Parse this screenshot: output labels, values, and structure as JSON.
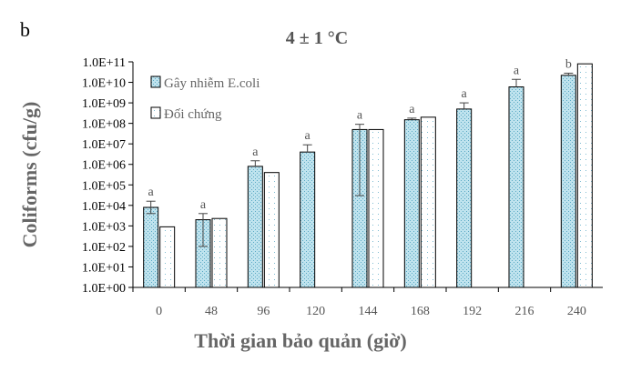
{
  "panel_label": "b",
  "chart_data": {
    "type": "bar",
    "title": "4 ± 1 °C",
    "xlabel": "Thời gian bảo quản (giờ)",
    "ylabel": "Coliforms (cfu/g)",
    "y_scale": "log",
    "ylim": [
      1,
      100000000000
    ],
    "y_ticks": [
      "1.0E+00",
      "1.0E+01",
      "1.0E+02",
      "1.0E+03",
      "1.0E+04",
      "1.0E+05",
      "1.0E+06",
      "1.0E+07",
      "1.0E+08",
      "1.0E+09",
      "1.0E+10",
      "1.0E+11"
    ],
    "categories": [
      "0",
      "48",
      "96",
      "120",
      "144",
      "168",
      "192",
      "216",
      "240"
    ],
    "legend_position": "top-left",
    "series": [
      {
        "name": "Gây nhiễm E.coli",
        "color": "#bfe3ee",
        "pattern": "dotted-blue",
        "values": [
          8000,
          2000,
          800000,
          4000000,
          50000000,
          150000000,
          500000000,
          6000000000,
          22000000000
        ],
        "error_upper": [
          16000,
          4000,
          1500000,
          9000000,
          90000000,
          180000000,
          1000000000,
          14000000000,
          28000000000
        ],
        "error_lower": [
          4000,
          100,
          800000,
          4000000,
          30000,
          150000000,
          500000000,
          6000000000,
          22000000000
        ],
        "labels": [
          "a",
          "a",
          "a",
          "a",
          "a",
          "a",
          "a",
          "a",
          "b"
        ]
      },
      {
        "name": "Đối chứng",
        "color": "#ffffff",
        "pattern": "sparse-dots",
        "values": [
          900,
          2300,
          400000,
          null,
          50000000,
          200000000,
          null,
          null,
          80000000000
        ]
      }
    ]
  }
}
